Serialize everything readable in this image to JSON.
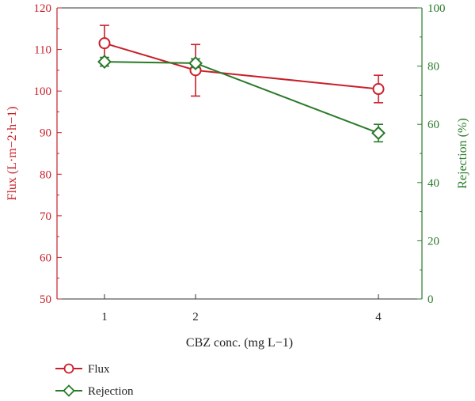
{
  "chart_data": {
    "type": "line",
    "x": [
      1,
      2,
      4
    ],
    "xticks": [
      "1",
      "2",
      "4"
    ],
    "xlabel": "CBZ conc. (mg L−1)",
    "y_left": {
      "label": "Flux (L·m−2·h−1)",
      "range": [
        50,
        120
      ],
      "ticks": [
        50,
        60,
        70,
        80,
        90,
        100,
        110,
        120
      ],
      "color": "#c8202a"
    },
    "y_right": {
      "label": "Rejection (%)",
      "range": [
        0,
        100
      ],
      "ticks": [
        0,
        20,
        40,
        60,
        80,
        100
      ],
      "color": "#2a7a2a"
    },
    "series": [
      {
        "name": "Flux",
        "axis": "left",
        "color": "#c8202a",
        "marker": "circle",
        "values": [
          111.5,
          105,
          100.5
        ],
        "error": [
          4.3,
          6.2,
          3.3
        ]
      },
      {
        "name": "Rejection",
        "axis": "right",
        "color": "#2a7a2a",
        "marker": "diamond",
        "values": [
          81.5,
          81,
          57
        ],
        "error": [
          1.5,
          1.5,
          3
        ]
      }
    ],
    "grid": false,
    "legend_position": "bottom-left"
  }
}
